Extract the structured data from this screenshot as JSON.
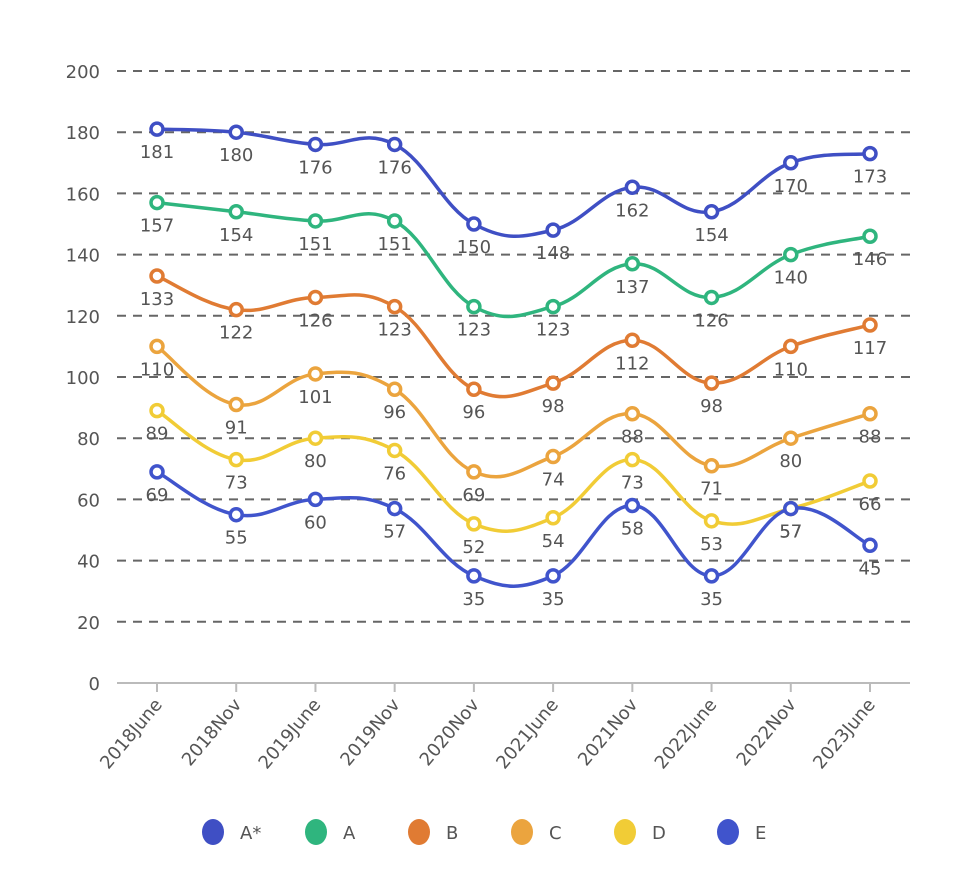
{
  "chart_data": {
    "type": "line",
    "title": "",
    "xlabel": "",
    "ylabel": "",
    "ylim": [
      0,
      200
    ],
    "yticks": [
      0,
      20,
      40,
      60,
      80,
      100,
      120,
      140,
      160,
      180,
      200
    ],
    "grid": true,
    "smooth": true,
    "legend_position": "bottom",
    "categories": [
      "2018June",
      "2018Nov",
      "2019June",
      "2019Nov",
      "2020Nov",
      "2021June",
      "2021Nov",
      "2022June",
      "2022Nov",
      "2023June"
    ],
    "series": [
      {
        "name": "A*",
        "color": "#3f4fc4",
        "values": [
          181,
          180,
          176,
          176,
          150,
          148,
          162,
          154,
          170,
          173
        ]
      },
      {
        "name": "A",
        "color": "#2fb57e",
        "values": [
          157,
          154,
          151,
          151,
          123,
          123,
          137,
          126,
          140,
          146
        ]
      },
      {
        "name": "B",
        "color": "#e07b33",
        "values": [
          133,
          122,
          126,
          123,
          96,
          98,
          112,
          98,
          110,
          117
        ]
      },
      {
        "name": "C",
        "color": "#eba43e",
        "values": [
          110,
          91,
          101,
          96,
          69,
          74,
          88,
          71,
          80,
          88
        ]
      },
      {
        "name": "D",
        "color": "#f1cc36",
        "values": [
          89,
          73,
          80,
          76,
          52,
          54,
          73,
          53,
          57,
          66
        ]
      },
      {
        "name": "E",
        "color": "#4054cc",
        "values": [
          69,
          55,
          60,
          57,
          35,
          35,
          58,
          35,
          57,
          45
        ]
      }
    ]
  }
}
